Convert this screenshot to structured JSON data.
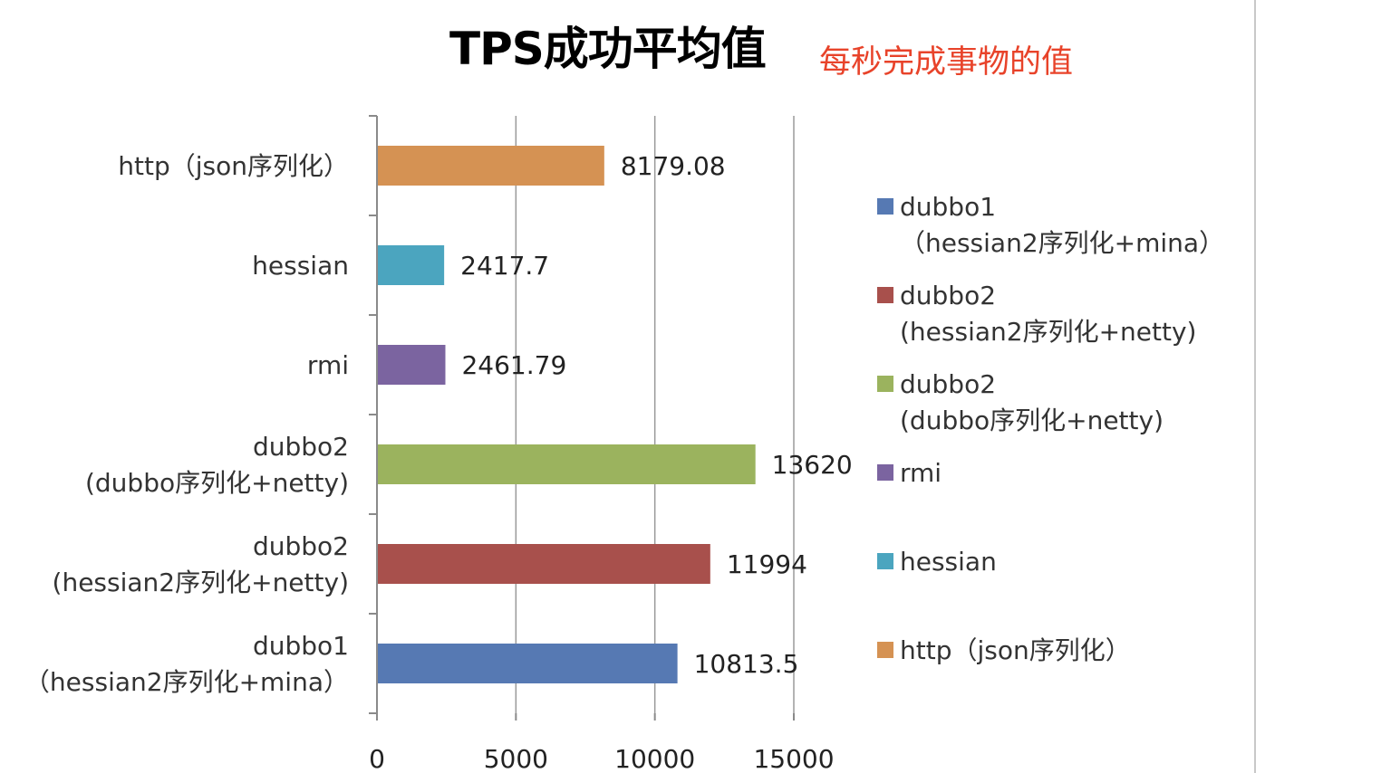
{
  "title": "TPS成功平均值",
  "annotation": "每秒完成事物的值",
  "chart_data": {
    "type": "bar",
    "orientation": "horizontal",
    "title": "TPS成功平均值",
    "categories": [
      [
        "http（json序列化）"
      ],
      [
        "hessian"
      ],
      [
        "rmi"
      ],
      [
        "dubbo2",
        "(dubbo序列化+netty)"
      ],
      [
        "dubbo2",
        "(hessian2序列化+netty)"
      ],
      [
        "dubbo1",
        "（hessian2序列化+mina）"
      ]
    ],
    "values": [
      8179.08,
      2417.7,
      2461.79,
      13620,
      11994,
      10813.5
    ],
    "value_labels": [
      "8179.08",
      "2417.7",
      "2461.79",
      "13620",
      "11994",
      "10813.5"
    ],
    "colors": [
      "#d59253",
      "#4ba5bf",
      "#7b64a0",
      "#9bb35e",
      "#a8504c",
      "#5679b3"
    ],
    "xlim": [
      0,
      15000
    ],
    "xticks": [
      0,
      5000,
      10000,
      15000
    ],
    "grid": "vertical",
    "legend_position": "right",
    "legend": [
      {
        "label": [
          "dubbo1",
          "（hessian2序列化+mina）"
        ],
        "color": "#5679b3"
      },
      {
        "label": [
          "dubbo2",
          "(hessian2序列化+netty)"
        ],
        "color": "#a8504c"
      },
      {
        "label": [
          "dubbo2",
          "(dubbo序列化+netty)"
        ],
        "color": "#9bb35e"
      },
      {
        "label": [
          "rmi"
        ],
        "color": "#7b64a0"
      },
      {
        "label": [
          "hessian"
        ],
        "color": "#4ba5bf"
      },
      {
        "label": [
          "http（json序列化）"
        ],
        "color": "#d59253"
      }
    ]
  }
}
